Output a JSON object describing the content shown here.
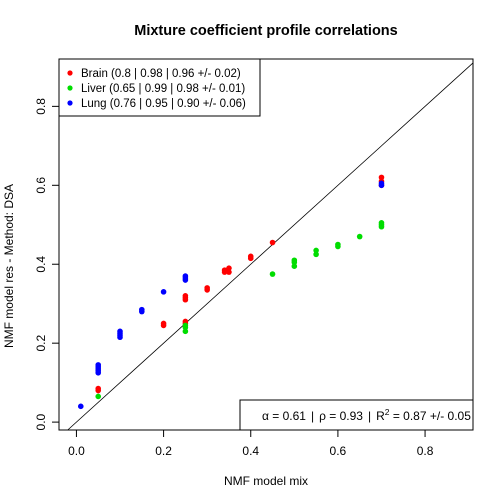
{
  "chart_data": {
    "type": "scatter",
    "title": "Mixture coefficient profile correlations",
    "xlabel": "NMF model mix",
    "ylabel": "NMF model res - Method: DSA",
    "xlim": [
      -0.04,
      0.91
    ],
    "ylim": [
      -0.02,
      0.92
    ],
    "x_ticks": [
      "0.0",
      "0.2",
      "0.4",
      "0.6",
      "0.8"
    ],
    "y_ticks": [
      "0.0",
      "0.2",
      "0.4",
      "0.6",
      "0.8"
    ],
    "grid": false,
    "legend_position": "top-left",
    "reference_line": "y = x",
    "series": [
      {
        "name": "Brain (0.8 | 0.98 | 0.96 +/- 0.02)",
        "color": "#ff0000",
        "points": [
          [
            0.05,
            0.08
          ],
          [
            0.05,
            0.085
          ],
          [
            0.2,
            0.245
          ],
          [
            0.2,
            0.25
          ],
          [
            0.25,
            0.255
          ],
          [
            0.25,
            0.25
          ],
          [
            0.25,
            0.31
          ],
          [
            0.25,
            0.315
          ],
          [
            0.25,
            0.32
          ],
          [
            0.3,
            0.335
          ],
          [
            0.3,
            0.34
          ],
          [
            0.34,
            0.385
          ],
          [
            0.34,
            0.38
          ],
          [
            0.35,
            0.38
          ],
          [
            0.35,
            0.39
          ],
          [
            0.4,
            0.415
          ],
          [
            0.4,
            0.42
          ],
          [
            0.45,
            0.455
          ],
          [
            0.7,
            0.61
          ],
          [
            0.7,
            0.62
          ],
          [
            0.7,
            0.6
          ]
        ]
      },
      {
        "name": "Liver (0.65 | 0.99 | 0.98 +/- 0.01)",
        "color": "#00dd00",
        "points": [
          [
            0.05,
            0.065
          ],
          [
            0.25,
            0.23
          ],
          [
            0.25,
            0.24
          ],
          [
            0.25,
            0.245
          ],
          [
            0.45,
            0.375
          ],
          [
            0.5,
            0.395
          ],
          [
            0.5,
            0.405
          ],
          [
            0.5,
            0.41
          ],
          [
            0.55,
            0.425
          ],
          [
            0.55,
            0.435
          ],
          [
            0.6,
            0.445
          ],
          [
            0.6,
            0.45
          ],
          [
            0.65,
            0.47
          ],
          [
            0.7,
            0.495
          ],
          [
            0.7,
            0.5
          ],
          [
            0.7,
            0.505
          ]
        ]
      },
      {
        "name": "Lung (0.76 | 0.95 | 0.90 +/- 0.06)",
        "color": "#0000ff",
        "points": [
          [
            0.01,
            0.04
          ],
          [
            0.05,
            0.125
          ],
          [
            0.05,
            0.13
          ],
          [
            0.05,
            0.135
          ],
          [
            0.05,
            0.14
          ],
          [
            0.05,
            0.145
          ],
          [
            0.1,
            0.215
          ],
          [
            0.1,
            0.22
          ],
          [
            0.1,
            0.225
          ],
          [
            0.1,
            0.23
          ],
          [
            0.15,
            0.28
          ],
          [
            0.15,
            0.285
          ],
          [
            0.2,
            0.33
          ],
          [
            0.25,
            0.36
          ],
          [
            0.25,
            0.365
          ],
          [
            0.25,
            0.37
          ],
          [
            0.7,
            0.6
          ],
          [
            0.7,
            0.605
          ]
        ]
      }
    ],
    "stats_box": {
      "alpha_label": "α = 0.61",
      "rho_label": "ρ = 0.93",
      "r2_prefix": "R",
      "r2_sup": "2",
      "r2_rest": " = 0.87 +/- 0.05",
      "separator": "|"
    }
  }
}
